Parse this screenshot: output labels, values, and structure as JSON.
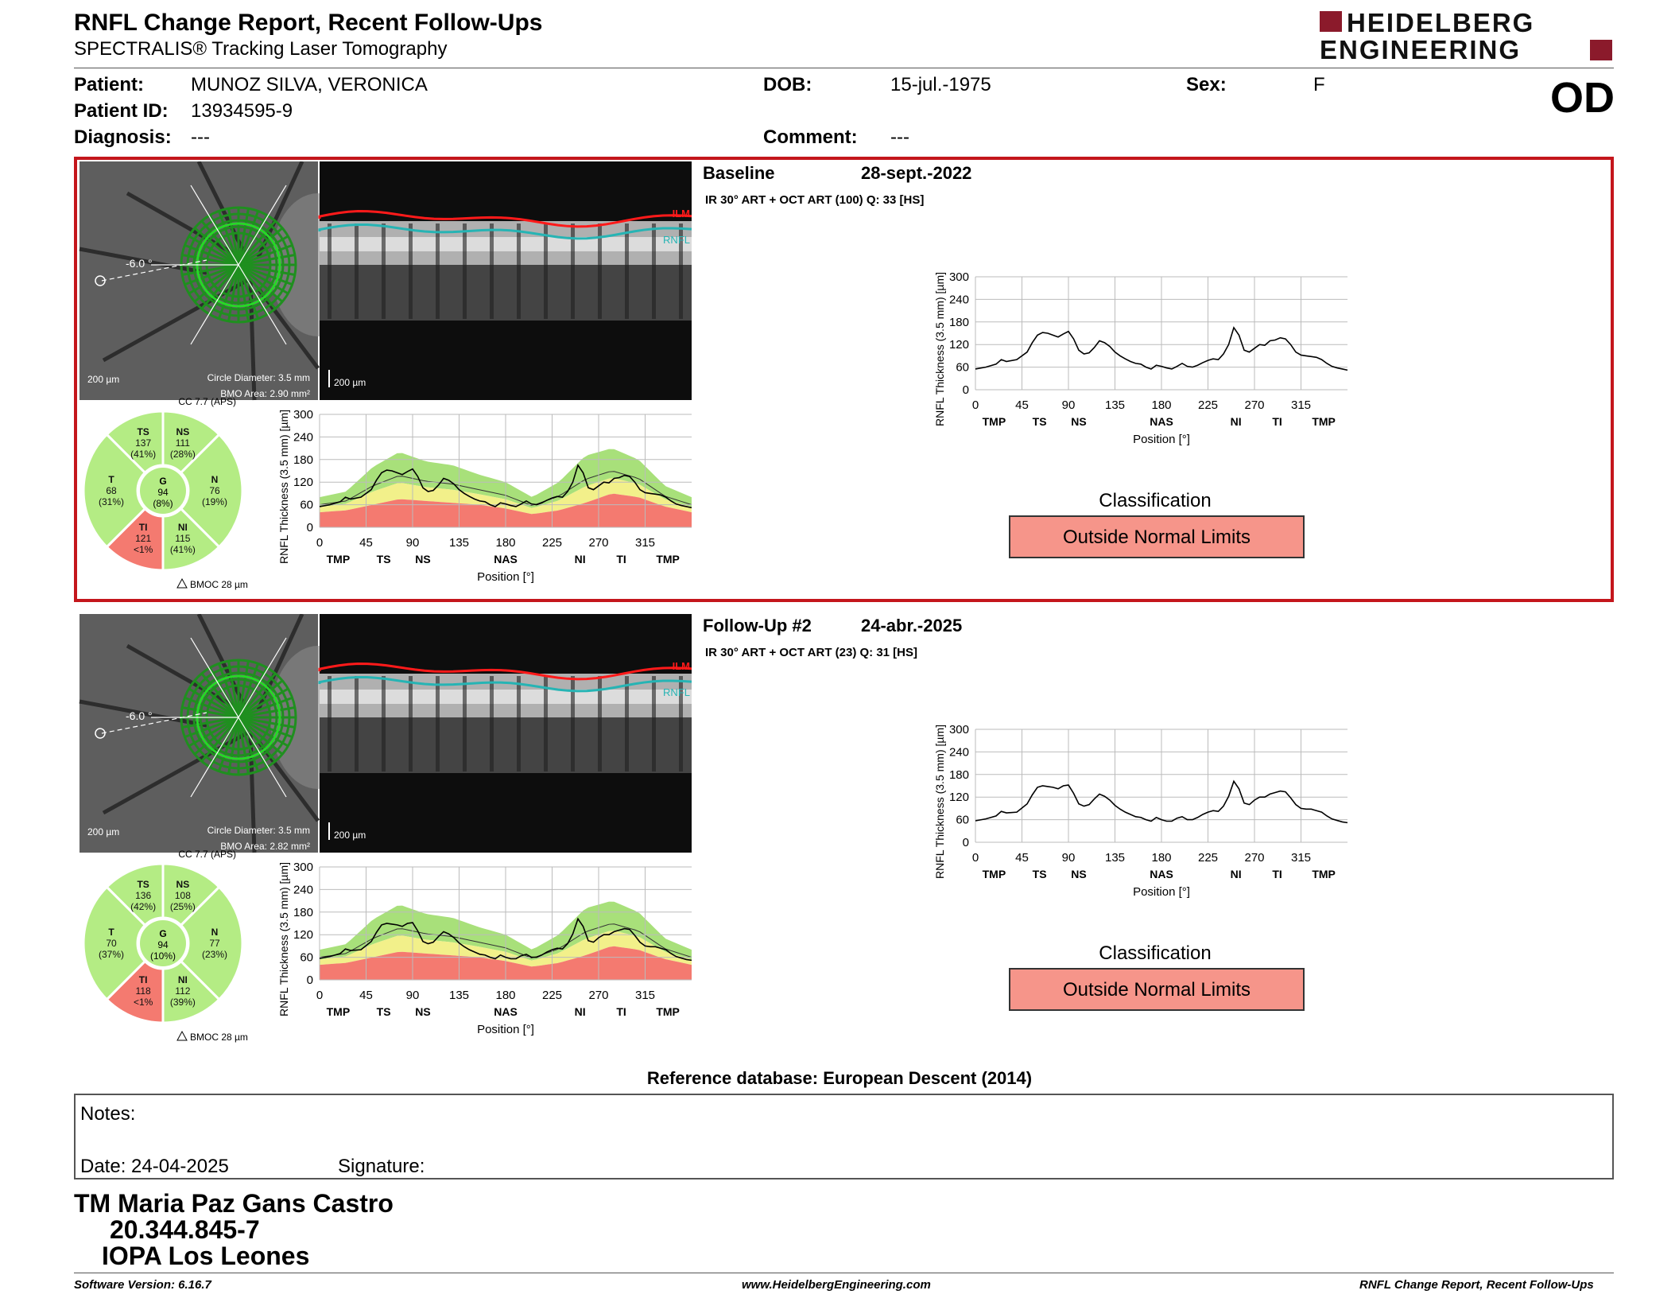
{
  "header": {
    "title": "RNFL Change Report, Recent Follow-Ups",
    "subtitle": "SPECTRALIS® Tracking Laser Tomography",
    "logo_line1": "HEIDELBERG",
    "logo_line2": "ENGINEERING",
    "eye": "OD"
  },
  "patient": {
    "patient_label": "Patient:",
    "patient_value": "MUNOZ SILVA, VERONICA",
    "id_label": "Patient ID:",
    "id_value": "13934595-9",
    "diagnosis_label": "Diagnosis:",
    "diagnosis_value": "---",
    "dob_label": "DOB:",
    "dob_value": "15-jul.-1975",
    "comment_label": "Comment:",
    "comment_value": "---",
    "sex_label": "Sex:",
    "sex_value": "F"
  },
  "scans": [
    {
      "title": "Baseline",
      "date": "28-sept.-2022",
      "meta": "IR 30° ART + OCT ART (100) Q: 33 [HS]",
      "angle": "-6.0 °",
      "scale_fundus": "200 µm",
      "scale_bscan": "200 µm",
      "circle_diameter": "Circle Diameter: 3.5 mm",
      "bmo_area": "BMO Area: 2.90 mm²",
      "cc": "CC 7.7 (APS)",
      "bmoc": "BMOC 28 µm",
      "ilm": "ILM",
      "rnfl": "RNFL",
      "sectors": {
        "TS": {
          "label": "TS",
          "value": "137",
          "pct": "(41%)"
        },
        "NS": {
          "label": "NS",
          "value": "111",
          "pct": "(28%)"
        },
        "T": {
          "label": "T",
          "value": "68",
          "pct": "(31%)"
        },
        "G": {
          "label": "G",
          "value": "94",
          "pct": "(8%)"
        },
        "N": {
          "label": "N",
          "value": "76",
          "pct": "(19%)"
        },
        "TI": {
          "label": "TI",
          "value": "121",
          "pct": "<1%"
        },
        "NI": {
          "label": "NI",
          "value": "115",
          "pct": "(41%)"
        }
      },
      "classification_label": "Classification",
      "classification": "Outside Normal Limits"
    },
    {
      "title": "Follow-Up #2",
      "date": "24-abr.-2025",
      "meta": "IR 30° ART + OCT ART (23) Q: 31 [HS]",
      "angle": "-6.0 °",
      "scale_fundus": "200 µm",
      "scale_bscan": "200 µm",
      "circle_diameter": "Circle Diameter: 3.5 mm",
      "bmo_area": "BMO Area: 2.82 mm²",
      "cc": "CC 7.7 (APS)",
      "bmoc": "BMOC 28 µm",
      "ilm": "ILM",
      "rnfl": "RNFL",
      "sectors": {
        "TS": {
          "label": "TS",
          "value": "136",
          "pct": "(42%)"
        },
        "NS": {
          "label": "NS",
          "value": "108",
          "pct": "(25%)"
        },
        "T": {
          "label": "T",
          "value": "70",
          "pct": "(37%)"
        },
        "G": {
          "label": "G",
          "value": "94",
          "pct": "(10%)"
        },
        "N": {
          "label": "N",
          "value": "77",
          "pct": "(23%)"
        },
        "TI": {
          "label": "TI",
          "value": "118",
          "pct": "<1%"
        },
        "NI": {
          "label": "NI",
          "value": "112",
          "pct": "(39%)"
        }
      },
      "classification_label": "Classification",
      "classification": "Outside Normal Limits"
    }
  ],
  "chart_data": [
    {
      "type": "line",
      "title": "",
      "xlabel": "Position [°]",
      "ylabel": "RNFL Thickness (3.5 mm) [µm]",
      "xlim": [
        0,
        360
      ],
      "ylim": [
        0,
        300
      ],
      "xticks": [
        0,
        45,
        90,
        135,
        180,
        225,
        270,
        315
      ],
      "yticks": [
        0,
        60,
        120,
        180,
        240,
        300
      ],
      "sector_labels": [
        "TMP",
        "TS",
        "NS",
        "NAS",
        "NI",
        "TI",
        "TMP"
      ],
      "sector_label_x": [
        18,
        62,
        100,
        180,
        252,
        292,
        337
      ],
      "normal_band_upper": [
        80,
        95,
        160,
        200,
        175,
        165,
        140,
        120,
        80,
        120,
        190,
        210,
        180,
        110,
        80
      ],
      "normal_band_lower": [
        40,
        45,
        60,
        75,
        70,
        65,
        60,
        50,
        35,
        45,
        65,
        90,
        80,
        55,
        40
      ],
      "series": [
        {
          "x": [
            0,
            10,
            20,
            25,
            30,
            40,
            50,
            55,
            60,
            65,
            70,
            75,
            80,
            85,
            90,
            95,
            100,
            105,
            110,
            115,
            120,
            125,
            130,
            135,
            140,
            145,
            150,
            155,
            160,
            165,
            170,
            175,
            180,
            185,
            190,
            195,
            200,
            205,
            210,
            215,
            220,
            225,
            230,
            235,
            240,
            245,
            250,
            255,
            260,
            265,
            270,
            275,
            280,
            285,
            290,
            295,
            300,
            305,
            310,
            315,
            320,
            325,
            330,
            335,
            340,
            345,
            350,
            355,
            360
          ],
          "y": [
            55,
            60,
            68,
            80,
            75,
            80,
            100,
            125,
            145,
            152,
            150,
            145,
            140,
            148,
            155,
            135,
            105,
            95,
            98,
            112,
            130,
            125,
            115,
            100,
            90,
            82,
            75,
            70,
            68,
            60,
            55,
            65,
            62,
            58,
            55,
            62,
            70,
            62,
            60,
            65,
            72,
            78,
            82,
            80,
            95,
            120,
            165,
            145,
            105,
            100,
            110,
            120,
            118,
            130,
            132,
            138,
            135,
            120,
            100,
            92,
            90,
            88,
            86,
            80,
            70,
            62,
            58,
            55,
            52
          ]
        }
      ]
    },
    {
      "type": "line",
      "title": "",
      "xlabel": "Position [°]",
      "ylabel": "RNFL Thickness (3.5 mm) [µm]",
      "xlim": [
        0,
        360
      ],
      "ylim": [
        0,
        300
      ],
      "xticks": [
        0,
        45,
        90,
        135,
        180,
        225,
        270,
        315
      ],
      "yticks": [
        0,
        60,
        120,
        180,
        240,
        300
      ],
      "sector_labels": [
        "TMP",
        "TS",
        "NS",
        "NAS",
        "NI",
        "TI",
        "TMP"
      ],
      "sector_label_x": [
        18,
        62,
        100,
        180,
        252,
        292,
        337
      ],
      "normal_band_upper": [
        80,
        95,
        160,
        200,
        175,
        165,
        140,
        120,
        80,
        120,
        190,
        210,
        180,
        110,
        80
      ],
      "normal_band_lower": [
        40,
        45,
        60,
        75,
        70,
        65,
        60,
        50,
        35,
        45,
        65,
        90,
        80,
        55,
        40
      ],
      "series": [
        {
          "x": [
            0,
            10,
            20,
            25,
            30,
            40,
            50,
            55,
            60,
            65,
            70,
            75,
            80,
            85,
            90,
            95,
            100,
            105,
            110,
            115,
            120,
            125,
            130,
            135,
            140,
            145,
            150,
            155,
            160,
            165,
            170,
            175,
            180,
            185,
            190,
            195,
            200,
            205,
            210,
            215,
            220,
            225,
            230,
            235,
            240,
            245,
            250,
            255,
            260,
            265,
            270,
            275,
            280,
            285,
            290,
            295,
            300,
            305,
            310,
            315,
            320,
            325,
            330,
            335,
            340,
            345,
            350,
            355,
            360
          ],
          "y": [
            57,
            62,
            70,
            82,
            78,
            80,
            102,
            126,
            146,
            150,
            148,
            146,
            142,
            150,
            152,
            130,
            102,
            96,
            100,
            115,
            128,
            122,
            112,
            98,
            88,
            80,
            74,
            68,
            66,
            60,
            56,
            66,
            60,
            56,
            56,
            64,
            68,
            60,
            60,
            66,
            74,
            80,
            84,
            82,
            96,
            122,
            162,
            142,
            104,
            100,
            112,
            120,
            120,
            128,
            132,
            136,
            134,
            118,
            100,
            90,
            88,
            88,
            84,
            80,
            70,
            62,
            58,
            54,
            52
          ]
        }
      ]
    }
  ],
  "ref_db": "Reference database: European Descent (2014)",
  "notes": {
    "notes_label": "Notes:",
    "date_label": "Date: 24-04-2025",
    "signature_label": "Signature:"
  },
  "signature": {
    "name": "TM Maria Paz Gans Castro",
    "id": "20.344.845-7",
    "org": "IOPA Los Leones"
  },
  "footer": {
    "software": "Software Version: 6.16.7",
    "url": "www.HeidelbergEngineering.com",
    "report": "RNFL Change Report, Recent Follow-Ups"
  },
  "colors": {
    "brand_red": "#8b1a2b",
    "highlight_border": "#c4161c",
    "outside_normal": "#f6958a",
    "normal_green": "#a8e07a",
    "borderline_yellow": "#f2f08a",
    "abnormal_red": "#f47a70",
    "scan_circle": "#27d827"
  }
}
